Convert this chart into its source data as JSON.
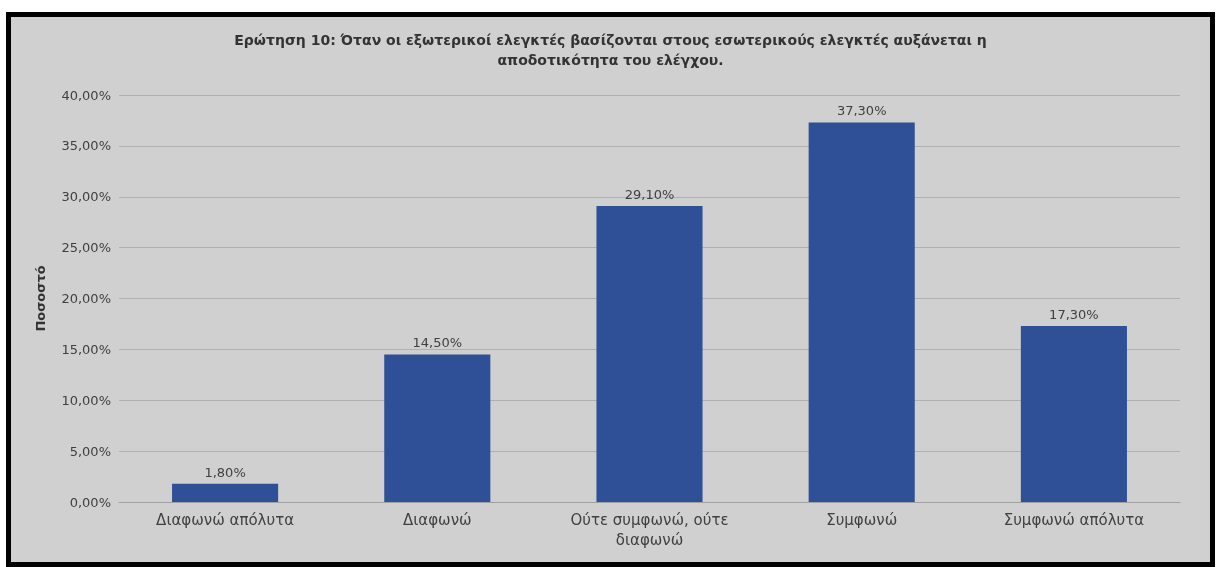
{
  "chart_data": {
    "type": "bar",
    "title": "Ερώτηση 10: Όταν οι εξωτερικοί ελεγκτές βασίζονται στους εσωτερικούς ελεγκτές αυξάνεται η\nαποδοτικότητα του ελέγχου.",
    "ylabel": "Ποσοστό",
    "categories": [
      "Διαφωνώ απόλυτα",
      "Διαφωνώ",
      "Ούτε συμφωνώ, ούτε\nδιαφωνώ",
      "Συμφωνώ",
      "Συμφωνώ απόλυτα"
    ],
    "values": [
      1.8,
      14.5,
      29.1,
      37.3,
      17.3
    ],
    "value_labels": [
      "1,80%",
      "14,50%",
      "29,10%",
      "37,30%",
      "17,30%"
    ],
    "color": "#2f5096",
    "ylim": [
      0,
      40
    ],
    "yticks": [
      {
        "value": 0,
        "label": "0,00%"
      },
      {
        "value": 5,
        "label": "5,00%"
      },
      {
        "value": 10,
        "label": "10,00%"
      },
      {
        "value": 15,
        "label": "15,00%"
      },
      {
        "value": 20,
        "label": "20,00%"
      },
      {
        "value": 25,
        "label": "25,00%"
      },
      {
        "value": 30,
        "label": "30,00%"
      },
      {
        "value": 35,
        "label": "35,00%"
      },
      {
        "value": 40,
        "label": "40,00%"
      }
    ],
    "grid": "y"
  }
}
